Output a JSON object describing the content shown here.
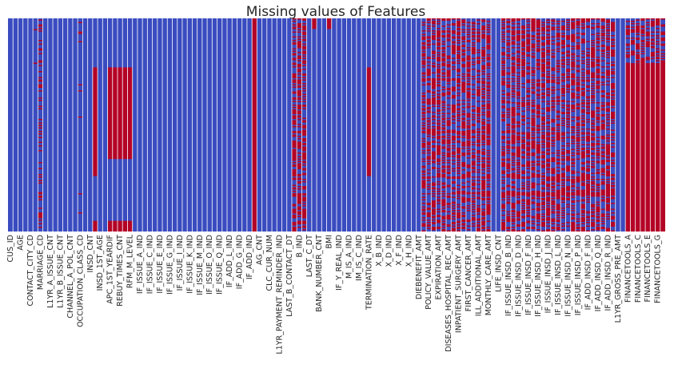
{
  "chart_data": {
    "type": "heatmap",
    "title": "Missing values of Features",
    "xlabel": "",
    "ylabel": "",
    "colors": {
      "present": "#3a4cc0",
      "missing": "#b40426",
      "separator": "#ffffff"
    },
    "grid": false,
    "legend": "none",
    "y_tick_labels": "none",
    "features": [
      {
        "label": "CUS_ID",
        "missing": []
      },
      {
        "label": "",
        "missing": []
      },
      {
        "label": "AGE",
        "missing": []
      },
      {
        "label": "",
        "missing": []
      },
      {
        "label": "CONTACT_CITY_CD",
        "missing": []
      },
      {
        "label": "",
        "missing": [
          [
            0.0,
            1.0,
            0.02
          ]
        ]
      },
      {
        "label": "MARRIAGE_CD",
        "missing": [
          [
            0.0,
            1.0,
            0.3
          ]
        ]
      },
      {
        "label": "",
        "missing": []
      },
      {
        "label": "L1YR_A_ISSUE_CNT",
        "missing": []
      },
      {
        "label": "",
        "missing": []
      },
      {
        "label": "L1YR_B_ISSUE_CNT",
        "missing": []
      },
      {
        "label": "",
        "missing": []
      },
      {
        "label": "CHANNEL_A_POL_CNT",
        "missing": []
      },
      {
        "label": "",
        "missing": []
      },
      {
        "label": "OCCUPATION_CLASS_CD",
        "missing": [
          [
            0.0,
            1.0,
            0.03
          ]
        ]
      },
      {
        "label": "",
        "missing": []
      },
      {
        "label": "INSD_CNT",
        "missing": []
      },
      {
        "label": "",
        "missing": [
          [
            0.23,
            0.74,
            1.0
          ],
          [
            0.95,
            1.0,
            1.0
          ]
        ]
      },
      {
        "label": "INSD_1ST_AGE",
        "missing": []
      },
      {
        "label": "",
        "missing": []
      },
      {
        "label": "APC_1ST_YEARDIF",
        "missing": [
          [
            0.23,
            0.66,
            1.0
          ],
          [
            0.95,
            1.0,
            1.0
          ]
        ]
      },
      {
        "label": "",
        "missing": [
          [
            0.23,
            0.66,
            1.0
          ],
          [
            0.95,
            1.0,
            1.0
          ]
        ]
      },
      {
        "label": "REBUY_TIMES_CNT",
        "missing": [
          [
            0.23,
            0.66,
            1.0
          ],
          [
            0.95,
            1.0,
            1.0
          ]
        ]
      },
      {
        "label": "",
        "missing": [
          [
            0.23,
            0.66,
            1.0
          ],
          [
            0.95,
            1.0,
            1.0
          ]
        ]
      },
      {
        "label": "RFM_M_LEVEL",
        "missing": [
          [
            0.23,
            0.66,
            1.0
          ],
          [
            0.95,
            1.0,
            1.0
          ]
        ]
      },
      {
        "label": "",
        "missing": []
      },
      {
        "label": "IF_ISSUE_A_IND",
        "missing": []
      },
      {
        "label": "",
        "missing": []
      },
      {
        "label": "IF_ISSUE_C_IND",
        "missing": []
      },
      {
        "label": "",
        "missing": []
      },
      {
        "label": "IF_ISSUE_E_IND",
        "missing": []
      },
      {
        "label": "",
        "missing": []
      },
      {
        "label": "IF_ISSUE_G_IND",
        "missing": []
      },
      {
        "label": "",
        "missing": []
      },
      {
        "label": "IF_ISSUE_I_IND",
        "missing": []
      },
      {
        "label": "",
        "missing": []
      },
      {
        "label": "IF_ISSUE_K_IND",
        "missing": []
      },
      {
        "label": "",
        "missing": []
      },
      {
        "label": "IF_ISSUE_M_IND",
        "missing": []
      },
      {
        "label": "",
        "missing": []
      },
      {
        "label": "IF_ISSUE_O_IND",
        "missing": []
      },
      {
        "label": "",
        "missing": []
      },
      {
        "label": "IF_ISSUE_Q_IND",
        "missing": []
      },
      {
        "label": "",
        "missing": []
      },
      {
        "label": "IF_ADD_L_IND",
        "missing": []
      },
      {
        "label": "",
        "missing": []
      },
      {
        "label": "IF_ADD_G_IND",
        "missing": []
      },
      {
        "label": "",
        "missing": []
      },
      {
        "label": "IF_ADD_IND",
        "missing": []
      },
      {
        "label": "",
        "missing": [
          [
            0.0,
            1.0,
            1.0
          ]
        ]
      },
      {
        "label": "AG_CNT",
        "missing": []
      },
      {
        "label": "",
        "missing": []
      },
      {
        "label": "CLC_CUR_NUM",
        "missing": []
      },
      {
        "label": "",
        "missing": []
      },
      {
        "label": "L1YR_PAYMENT_REMINDER_IND",
        "missing": []
      },
      {
        "label": "",
        "missing": []
      },
      {
        "label": "LAST_B_CONTACT_DT",
        "missing": []
      },
      {
        "label": "",
        "missing": [
          [
            0.0,
            1.0,
            0.55
          ]
        ]
      },
      {
        "label": "B_IND",
        "missing": [
          [
            0.0,
            1.0,
            0.55
          ]
        ]
      },
      {
        "label": "",
        "missing": [
          [
            0.0,
            1.0,
            0.55
          ]
        ]
      },
      {
        "label": "LAST_C_DT",
        "missing": []
      },
      {
        "label": "",
        "missing": [
          [
            0.0,
            0.05,
            1.0
          ]
        ]
      },
      {
        "label": "BANK_NUMBER_CNT",
        "missing": []
      },
      {
        "label": "",
        "missing": []
      },
      {
        "label": "BMI",
        "missing": [
          [
            0.0,
            0.05,
            1.0
          ]
        ]
      },
      {
        "label": "",
        "missing": []
      },
      {
        "label": "IF_Y_REAL_IND",
        "missing": []
      },
      {
        "label": "",
        "missing": []
      },
      {
        "label": "M_IS_A_IND",
        "missing": []
      },
      {
        "label": "",
        "missing": []
      },
      {
        "label": "IM_IS_C_IND",
        "missing": []
      },
      {
        "label": "",
        "missing": []
      },
      {
        "label": "TERMINATION_RATE",
        "missing": [
          [
            0.23,
            0.74,
            1.0
          ]
        ]
      },
      {
        "label": "",
        "missing": []
      },
      {
        "label": "X_B_IND",
        "missing": []
      },
      {
        "label": "",
        "missing": []
      },
      {
        "label": "X_D_IND",
        "missing": []
      },
      {
        "label": "",
        "missing": []
      },
      {
        "label": "X_F_IND",
        "missing": []
      },
      {
        "label": "",
        "missing": []
      },
      {
        "label": "X_H_IND",
        "missing": []
      },
      {
        "label": "",
        "missing": []
      },
      {
        "label": "DIEBENEFIT_AMT",
        "missing": []
      },
      {
        "label": "",
        "missing": [
          [
            0.0,
            1.0,
            0.5
          ]
        ]
      },
      {
        "label": "POLICY_VALUE_AMT",
        "missing": [
          [
            0.0,
            1.0,
            0.5
          ]
        ]
      },
      {
        "label": "",
        "missing": [
          [
            0.0,
            1.0,
            0.5
          ]
        ]
      },
      {
        "label": "EXPIRATION_AMT",
        "missing": [
          [
            0.0,
            1.0,
            0.5
          ]
        ]
      },
      {
        "label": "",
        "missing": [
          [
            0.0,
            1.0,
            0.5
          ]
        ]
      },
      {
        "label": "DISEASES_HOSPITAL_REC_AMT",
        "missing": [
          [
            0.0,
            1.0,
            0.5
          ]
        ]
      },
      {
        "label": "",
        "missing": [
          [
            0.0,
            1.0,
            0.5
          ]
        ]
      },
      {
        "label": "INPATIENT_SURGERY_AMT",
        "missing": [
          [
            0.0,
            1.0,
            0.5
          ]
        ]
      },
      {
        "label": "",
        "missing": [
          [
            0.0,
            1.0,
            0.5
          ]
        ]
      },
      {
        "label": "FIRST_CANCER_AMT",
        "missing": [
          [
            0.0,
            1.0,
            0.5
          ]
        ]
      },
      {
        "label": "",
        "missing": [
          [
            0.0,
            1.0,
            0.5
          ]
        ]
      },
      {
        "label": "ILL_ADDITIONAL_AMT",
        "missing": [
          [
            0.0,
            1.0,
            0.5
          ]
        ]
      },
      {
        "label": "",
        "missing": [
          [
            0.0,
            1.0,
            0.5
          ]
        ]
      },
      {
        "label": "MONTHLY_CARE_AMT",
        "missing": [
          [
            0.0,
            1.0,
            0.5
          ]
        ]
      },
      {
        "label": "",
        "missing": []
      },
      {
        "label": "LIFE_INSD_CNT",
        "missing": []
      },
      {
        "label": "",
        "missing": [
          [
            0.0,
            1.0,
            0.5
          ]
        ]
      },
      {
        "label": "IF_ISSUE_INSD_B_IND",
        "missing": [
          [
            0.0,
            1.0,
            0.5
          ]
        ]
      },
      {
        "label": "",
        "missing": [
          [
            0.0,
            1.0,
            0.5
          ]
        ]
      },
      {
        "label": "IF_ISSUE_INSD_D_IND",
        "missing": [
          [
            0.0,
            1.0,
            0.5
          ]
        ]
      },
      {
        "label": "",
        "missing": [
          [
            0.0,
            1.0,
            0.5
          ]
        ]
      },
      {
        "label": "IF_ISSUE_INSD_F_IND",
        "missing": [
          [
            0.0,
            1.0,
            0.5
          ]
        ]
      },
      {
        "label": "",
        "missing": [
          [
            0.0,
            1.0,
            0.5
          ]
        ]
      },
      {
        "label": "IF_ISSUE_INSD_H_IND",
        "missing": [
          [
            0.0,
            1.0,
            0.5
          ]
        ]
      },
      {
        "label": "",
        "missing": [
          [
            0.0,
            1.0,
            0.5
          ]
        ]
      },
      {
        "label": "IF_ISSUE_INSD_J_IND",
        "missing": [
          [
            0.0,
            1.0,
            0.5
          ]
        ]
      },
      {
        "label": "",
        "missing": [
          [
            0.0,
            1.0,
            0.5
          ]
        ]
      },
      {
        "label": "IF_ISSUE_INSD_L_IND",
        "missing": [
          [
            0.0,
            1.0,
            0.5
          ]
        ]
      },
      {
        "label": "",
        "missing": [
          [
            0.0,
            1.0,
            0.5
          ]
        ]
      },
      {
        "label": "IF_ISSUE_INSD_N_IND",
        "missing": [
          [
            0.0,
            1.0,
            0.5
          ]
        ]
      },
      {
        "label": "",
        "missing": [
          [
            0.0,
            1.0,
            0.5
          ]
        ]
      },
      {
        "label": "IF_ISSUE_INSD_P_IND",
        "missing": [
          [
            0.0,
            1.0,
            0.5
          ]
        ]
      },
      {
        "label": "",
        "missing": [
          [
            0.0,
            1.0,
            0.5
          ]
        ]
      },
      {
        "label": "IF_ADD_INSD_F_IND",
        "missing": [
          [
            0.0,
            1.0,
            0.5
          ]
        ]
      },
      {
        "label": "",
        "missing": [
          [
            0.0,
            1.0,
            0.5
          ]
        ]
      },
      {
        "label": "IF_ADD_INSD_Q_IND",
        "missing": [
          [
            0.0,
            1.0,
            0.5
          ]
        ]
      },
      {
        "label": "",
        "missing": [
          [
            0.0,
            1.0,
            0.5
          ]
        ]
      },
      {
        "label": "IF_ADD_INSD_R_IND",
        "missing": [
          [
            0.0,
            1.0,
            0.5
          ]
        ]
      },
      {
        "label": "",
        "missing": [
          [
            0.0,
            1.0,
            0.5
          ]
        ]
      },
      {
        "label": "L1YR_GROSS_PRE_AMT",
        "missing": []
      },
      {
        "label": "",
        "missing": []
      },
      {
        "label": "FINANCETOOLS_A",
        "missing": [
          [
            0.0,
            0.21,
            0.5
          ],
          [
            0.21,
            1.0,
            1.0
          ]
        ]
      },
      {
        "label": "",
        "missing": [
          [
            0.0,
            0.21,
            0.5
          ],
          [
            0.21,
            1.0,
            1.0
          ]
        ]
      },
      {
        "label": "FINANCETOOLS_C",
        "missing": [
          [
            0.0,
            0.21,
            0.5
          ],
          [
            0.21,
            1.0,
            1.0
          ]
        ]
      },
      {
        "label": "",
        "missing": [
          [
            0.0,
            0.21,
            0.5
          ],
          [
            0.21,
            1.0,
            1.0
          ]
        ]
      },
      {
        "label": "FINANCETOOLS_E",
        "missing": [
          [
            0.0,
            0.21,
            0.5
          ],
          [
            0.21,
            1.0,
            1.0
          ]
        ]
      },
      {
        "label": "",
        "missing": [
          [
            0.0,
            0.21,
            0.5
          ],
          [
            0.21,
            1.0,
            1.0
          ]
        ]
      },
      {
        "label": "FINANCETOOLS_G",
        "missing": [
          [
            0.0,
            0.21,
            0.5
          ],
          [
            0.21,
            1.0,
            1.0
          ]
        ]
      },
      {
        "label": "",
        "missing": [
          [
            0.0,
            0.21,
            0.5
          ],
          [
            0.21,
            1.0,
            1.0
          ]
        ]
      }
    ]
  }
}
